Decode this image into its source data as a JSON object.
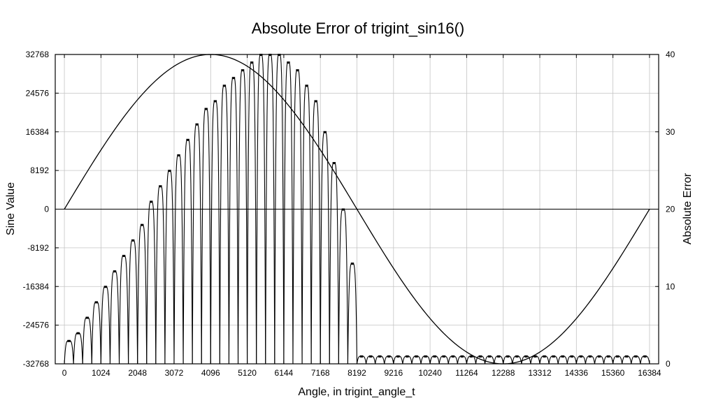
{
  "chart_data": {
    "type": "line",
    "title": "Absolute Error of trigint_sin16()",
    "xlabel": "Angle, in trigint_angle_t",
    "ylabel": "Sine Value",
    "y2label": "Absolute Error",
    "xlim": [
      -256,
      16640
    ],
    "ylim": [
      -32768,
      32768
    ],
    "y2lim": [
      0,
      40
    ],
    "xticks": [
      0,
      1024,
      2048,
      3072,
      4096,
      5120,
      6144,
      7168,
      8192,
      9216,
      10240,
      11264,
      12288,
      13312,
      14336,
      15360,
      16384
    ],
    "xtick_labels": [
      "0",
      "1024",
      "2048",
      "3072",
      "4096",
      "5120",
      "6144",
      "7168",
      "8192",
      "9216",
      "10240",
      "11264",
      "12288",
      "13312",
      "14336",
      "15360",
      "16384"
    ],
    "yticks": [
      32768,
      24576,
      16384,
      8192,
      0,
      -8192,
      -16384,
      -24576,
      -32768
    ],
    "ytick_labels": [
      "32768",
      "24576",
      "16384",
      "8192",
      "0",
      "-8192",
      "-16384",
      "-24576",
      "-32768"
    ],
    "y2ticks": [
      40,
      30,
      20,
      10,
      0
    ],
    "y2tick_labels": [
      "40",
      "30",
      "20",
      "10",
      "0"
    ],
    "grid": true,
    "series": [
      {
        "axis": "left",
        "color": "#000000",
        "x": [
          0,
          1024,
          2048,
          3072,
          4096,
          5120,
          6144,
          7168,
          8192,
          9216,
          10240,
          11264,
          12288,
          13312,
          14336,
          15360,
          16384
        ],
        "y": [
          0,
          12540,
          23170,
          30274,
          32767,
          30274,
          23170,
          12540,
          0,
          -12540,
          -23170,
          -30274,
          -32767,
          -30274,
          -23170,
          -12540,
          0
        ]
      },
      {
        "axis": "right",
        "color": "#000000",
        "style": "scalloped",
        "arch_period": 256,
        "arch_centers": [
          128,
          384,
          640,
          896,
          1152,
          1408,
          1664,
          1920,
          2176,
          2432,
          2688,
          2944,
          3200,
          3456,
          3712,
          3968,
          4224,
          4480,
          4736,
          4992,
          5248,
          5504,
          5760,
          6016,
          6272,
          6528,
          6784,
          7040,
          7296,
          7552,
          7808,
          8064,
          8320,
          8576,
          8832,
          9088,
          9344,
          9600,
          9856,
          10112,
          10368,
          10624,
          10880,
          11136,
          11392,
          11648,
          11904,
          12160,
          12416,
          12672,
          12928,
          13184,
          13440,
          13696,
          13952,
          14208,
          14464,
          14720,
          14976,
          15232,
          15488,
          15744,
          16000,
          16256
        ],
        "arch_peaks": [
          3,
          4,
          6,
          8,
          10,
          12,
          14,
          16,
          18,
          21,
          23,
          25,
          27,
          29,
          31,
          33,
          34,
          36,
          37,
          38,
          39,
          40,
          40,
          40,
          39,
          38,
          36,
          34,
          30,
          26,
          20,
          13,
          1,
          1,
          1,
          1,
          1,
          1,
          1,
          1,
          1,
          1,
          1,
          1,
          1,
          1,
          1,
          1,
          1,
          1,
          1,
          1,
          1,
          1,
          1,
          1,
          1,
          1,
          1,
          1,
          1,
          1,
          1,
          1
        ]
      }
    ]
  }
}
